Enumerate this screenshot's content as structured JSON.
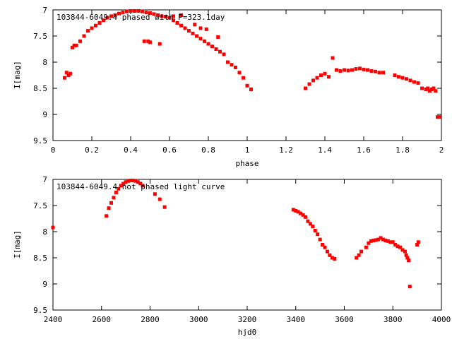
{
  "colors": {
    "points": "#ff0000",
    "axes": "#000000",
    "background": "#ffffff"
  },
  "chart_data": [
    {
      "type": "scatter",
      "title": "103844-6049.4 phased with P=323.1day",
      "xlabel": "phase",
      "ylabel": "I[mag]",
      "xlim": [
        0,
        2
      ],
      "ylim": [
        7,
        9.5
      ],
      "y_inverted": true,
      "grid": false,
      "xticks": [
        "0",
        "0.2",
        "0.4",
        "0.6",
        "0.8",
        "1",
        "1.2",
        "1.4",
        "1.6",
        "1.8",
        "2"
      ],
      "yticks": [
        "7",
        "7.5",
        "8",
        "8.5",
        "9",
        "9.5"
      ],
      "xtick_values": [
        0,
        0.2,
        0.4,
        0.6,
        0.8,
        1,
        1.2,
        1.4,
        1.6,
        1.8,
        2
      ],
      "ytick_values": [
        7,
        7.5,
        8,
        8.5,
        9,
        9.5
      ],
      "series": [
        {
          "x": [
            0.06,
            0.07,
            0.08,
            0.09,
            0.1,
            0.11,
            0.12,
            0.14,
            0.16,
            0.18,
            0.2,
            0.22,
            0.24,
            0.26,
            0.28,
            0.3,
            0.32,
            0.34,
            0.36,
            0.38,
            0.4,
            0.42,
            0.44,
            0.46,
            0.48,
            0.5,
            0.52,
            0.54,
            0.56,
            0.58,
            0.6,
            0.62,
            0.64,
            0.66,
            0.68,
            0.7,
            0.72,
            0.74,
            0.76,
            0.78,
            0.8,
            0.82,
            0.84,
            0.86,
            0.88,
            0.9,
            0.92,
            0.94,
            0.96,
            0.98,
            1.0,
            1.02,
            0.73,
            0.76,
            0.79,
            0.85,
            0.66,
            0.62,
            0.47,
            0.49,
            0.5,
            0.55,
            1.3,
            1.32,
            1.34,
            1.36,
            1.38,
            1.4,
            1.42,
            1.44,
            1.46,
            1.48,
            1.5,
            1.52,
            1.54,
            1.56,
            1.58,
            1.6,
            1.62,
            1.64,
            1.66,
            1.68,
            1.7,
            1.76,
            1.78,
            1.8,
            1.82,
            1.84,
            1.86,
            1.88,
            1.9,
            1.92,
            1.93,
            1.94,
            1.95,
            1.96,
            1.97,
            1.98,
            1.99
          ],
          "y": [
            8.3,
            8.2,
            8.25,
            8.22,
            7.72,
            7.68,
            7.68,
            7.6,
            7.5,
            7.4,
            7.35,
            7.3,
            7.25,
            7.2,
            7.15,
            7.12,
            7.1,
            7.07,
            7.05,
            7.03,
            7.02,
            7.02,
            7.02,
            7.03,
            7.05,
            7.06,
            7.08,
            7.1,
            7.12,
            7.13,
            7.15,
            7.2,
            7.25,
            7.3,
            7.35,
            7.4,
            7.45,
            7.5,
            7.55,
            7.6,
            7.65,
            7.7,
            7.75,
            7.8,
            7.85,
            8.0,
            8.05,
            8.1,
            8.2,
            8.3,
            8.45,
            8.52,
            7.28,
            7.35,
            7.37,
            7.52,
            7.1,
            7.12,
            7.6,
            7.6,
            7.62,
            7.65,
            8.5,
            8.42,
            8.35,
            8.3,
            8.25,
            8.22,
            8.28,
            7.92,
            8.15,
            8.17,
            8.15,
            8.16,
            8.15,
            8.13,
            8.12,
            8.14,
            8.15,
            8.17,
            8.18,
            8.2,
            8.2,
            8.25,
            8.28,
            8.3,
            8.32,
            8.35,
            8.38,
            8.4,
            8.5,
            8.52,
            8.5,
            8.55,
            8.52,
            8.5,
            8.55,
            9.05,
            9.05
          ]
        }
      ]
    },
    {
      "type": "scatter",
      "title": "103844-6049.4 not phased light curve",
      "xlabel": "hjd0",
      "ylabel": "I[mag]",
      "xlim": [
        2400,
        4000
      ],
      "ylim": [
        7,
        9.5
      ],
      "y_inverted": true,
      "grid": false,
      "xticks": [
        "2400",
        "2600",
        "2800",
        "3000",
        "3200",
        "3400",
        "3600",
        "3800",
        "4000"
      ],
      "yticks": [
        "7",
        "7.5",
        "8",
        "8.5",
        "9",
        "9.5"
      ],
      "xtick_values": [
        2400,
        2600,
        2800,
        3000,
        3200,
        3400,
        3600,
        3800,
        4000
      ],
      "ytick_values": [
        7,
        7.5,
        8,
        8.5,
        9,
        9.5
      ],
      "series": [
        {
          "x": [
            2400,
            2620,
            2630,
            2640,
            2650,
            2660,
            2670,
            2680,
            2690,
            2700,
            2710,
            2720,
            2730,
            2740,
            2750,
            2760,
            2770,
            2820,
            2840,
            2860,
            3390,
            3400,
            3410,
            3420,
            3430,
            3440,
            3450,
            3460,
            3470,
            3480,
            3490,
            3500,
            3510,
            3520,
            3530,
            3540,
            3550,
            3560,
            3650,
            3660,
            3670,
            3690,
            3700,
            3710,
            3720,
            3730,
            3740,
            3750,
            3760,
            3770,
            3780,
            3790,
            3800,
            3810,
            3820,
            3830,
            3840,
            3850,
            3855,
            3860,
            3865,
            3870,
            3900,
            3905
          ],
          "y": [
            7.92,
            7.7,
            7.55,
            7.45,
            7.35,
            7.25,
            7.18,
            7.12,
            7.08,
            7.05,
            7.03,
            7.02,
            7.02,
            7.03,
            7.05,
            7.08,
            7.12,
            7.28,
            7.38,
            7.53,
            7.58,
            7.6,
            7.62,
            7.65,
            7.68,
            7.72,
            7.8,
            7.85,
            7.9,
            7.98,
            8.05,
            8.15,
            8.25,
            8.3,
            8.38,
            8.45,
            8.5,
            8.52,
            8.5,
            8.45,
            8.38,
            8.3,
            8.22,
            8.18,
            8.17,
            8.16,
            8.15,
            8.12,
            8.15,
            8.17,
            8.18,
            8.2,
            8.2,
            8.25,
            8.28,
            8.3,
            8.35,
            8.38,
            8.45,
            8.5,
            8.55,
            9.05,
            8.25,
            8.2
          ]
        }
      ]
    }
  ]
}
